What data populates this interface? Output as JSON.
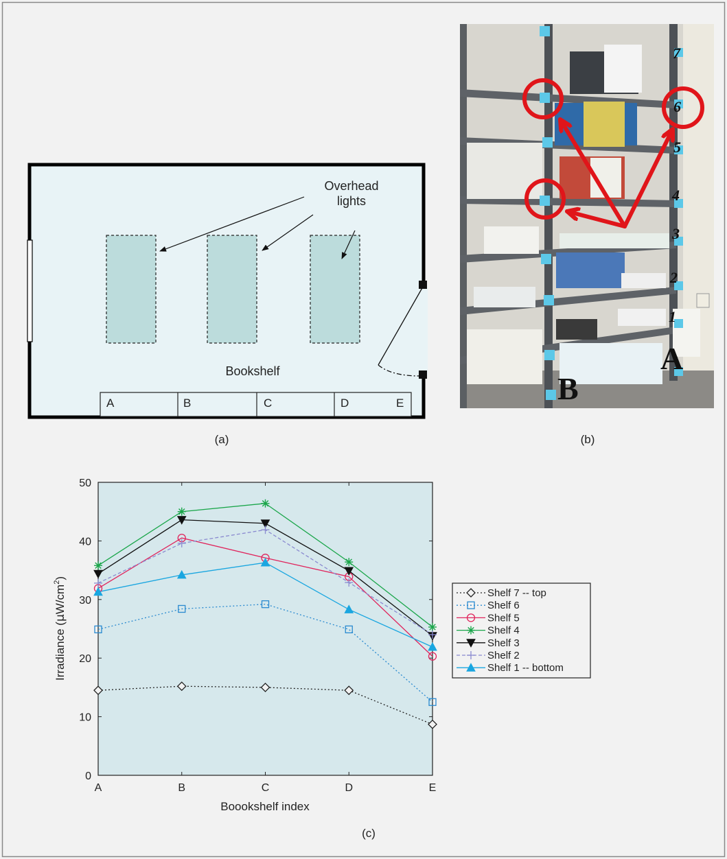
{
  "panel_a": {
    "caption": "(a)",
    "overhead_label_line1": "Overhead",
    "overhead_label_line2": "lights",
    "bookshelf_label": "Bookshelf",
    "sections": [
      "A",
      "B",
      "C",
      "D",
      "E"
    ]
  },
  "panel_b": {
    "caption": "(b)",
    "shelf_numbers": [
      "7",
      "6",
      "5",
      "4",
      "3",
      "2",
      "1"
    ],
    "label_a": "A",
    "label_b": "B"
  },
  "panel_c": {
    "caption": "(c)"
  },
  "colors": {
    "room_fill": "#e8f3f6",
    "light_fill": "#bcdcdc",
    "plot_bg": "#d6e8ec",
    "arrow_red": "#e0151a",
    "shelf7": "#222222",
    "shelf6": "#2a8ad0",
    "shelf5": "#e0245c",
    "shelf4": "#1aa64a",
    "shelf3": "#111111",
    "shelf2": "#8a8ad0",
    "shelf1": "#1aa6e0"
  },
  "chart_data": {
    "type": "line",
    "title": "",
    "xlabel": "Boookshelf index",
    "ylabel": "Irradiance (μW/cm²)",
    "ylabel_main": "Irradiance (",
    "ylabel_mu": "μ",
    "ylabel_unit": "W/cm",
    "ylabel_sup": "2",
    "ylabel_close": ")",
    "categories": [
      "A",
      "B",
      "C",
      "D",
      "E"
    ],
    "ylim": [
      0,
      50
    ],
    "yticks": [
      0,
      10,
      20,
      30,
      40,
      50
    ],
    "grid": false,
    "legend_position": "right",
    "series": [
      {
        "name": "Shelf 7 -- top",
        "marker": "diamond",
        "dash": "dotted",
        "color": "#222222",
        "values": [
          14.5,
          15.2,
          15.0,
          14.5,
          8.7
        ]
      },
      {
        "name": "Shelf 6",
        "marker": "square",
        "dash": "dotted",
        "color": "#2a8ad0",
        "values": [
          24.9,
          28.4,
          29.2,
          24.9,
          12.5
        ]
      },
      {
        "name": "Shelf 5",
        "marker": "circle",
        "dash": "solid",
        "color": "#e0245c",
        "values": [
          31.9,
          40.5,
          37.1,
          33.9,
          20.3
        ]
      },
      {
        "name": "Shelf 4",
        "marker": "asterisk",
        "dash": "solid",
        "color": "#1aa64a",
        "values": [
          35.8,
          45.0,
          46.4,
          36.4,
          25.3
        ]
      },
      {
        "name": "Shelf 3",
        "marker": "triangle-down",
        "dash": "solid",
        "color": "#111111",
        "values": [
          34.4,
          43.6,
          43.0,
          34.9,
          23.8
        ]
      },
      {
        "name": "Shelf 2",
        "marker": "plus",
        "dash": "dashed",
        "color": "#8a8ad0",
        "values": [
          32.8,
          39.6,
          41.9,
          32.9,
          24.0
        ]
      },
      {
        "name": "Shelf 1 -- bottom",
        "marker": "triangle-up",
        "dash": "solid",
        "color": "#1aa6e0",
        "values": [
          31.3,
          34.2,
          36.3,
          28.3,
          21.9
        ]
      }
    ]
  }
}
